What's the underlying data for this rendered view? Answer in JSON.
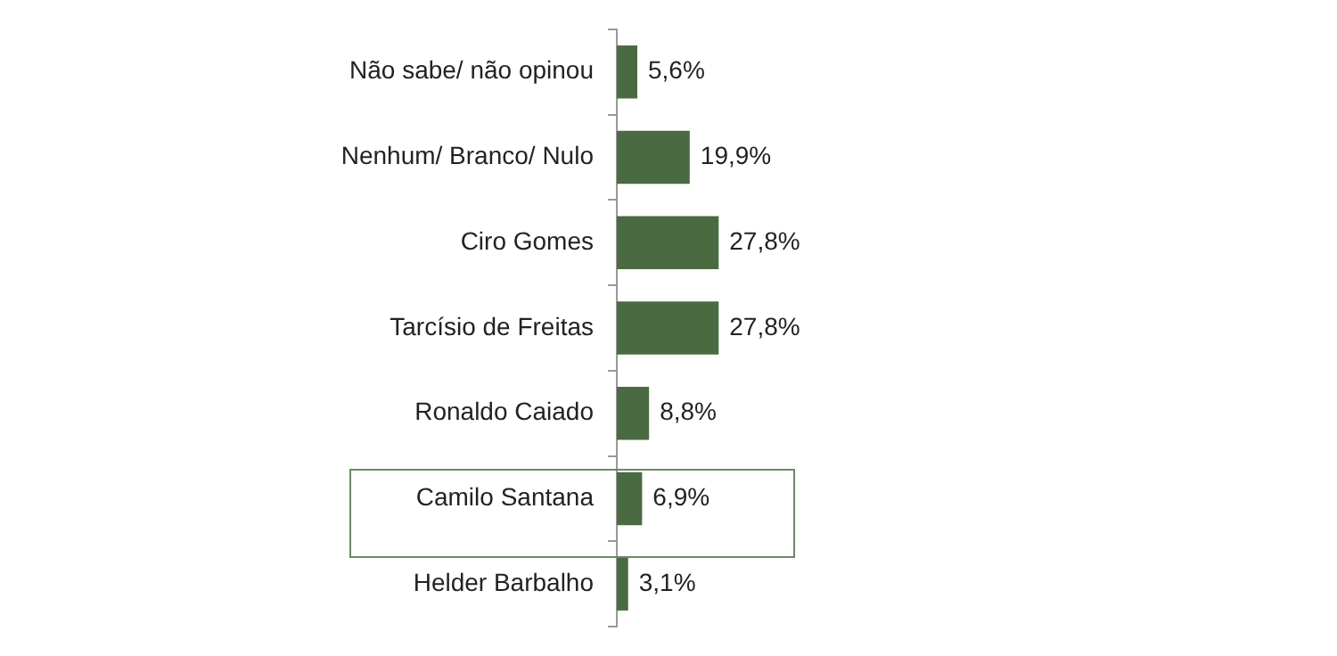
{
  "chart_data": {
    "type": "bar",
    "orientation": "horizontal",
    "categories": [
      "Não sabe/ não opinou",
      "Nenhum/ Branco/ Nulo",
      "Ciro Gomes",
      "Tarcísio de Freitas",
      "Ronaldo Caiado",
      "Camilo Santana",
      "Helder Barbalho"
    ],
    "values": [
      5.6,
      19.9,
      27.8,
      27.8,
      8.8,
      6.9,
      3.1
    ],
    "value_labels": [
      "5,6%",
      "19,9%",
      "27,8%",
      "27,8%",
      "8,8%",
      "6,9%",
      "3,1%"
    ],
    "color": "#4a6b42",
    "grid": false,
    "legend": false
  }
}
